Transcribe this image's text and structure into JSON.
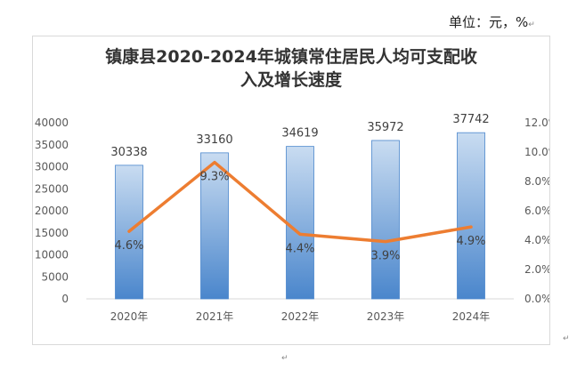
{
  "unit_text": "单位：元，%",
  "chart_data": {
    "type": "bar",
    "title_line1": "镇康县2020-2024年城镇常住居民人均可支配收",
    "title_line2": "入及增长速度",
    "categories": [
      "2020年",
      "2021年",
      "2022年",
      "2023年",
      "2024年"
    ],
    "series": [
      {
        "type": "bar",
        "values": [
          30338,
          33160,
          34619,
          35972,
          37742
        ]
      },
      {
        "type": "line",
        "axis": "right",
        "values": [
          4.6,
          9.3,
          4.4,
          3.9,
          4.9
        ],
        "labels": [
          "4.6%",
          "9.3%",
          "4.4%",
          "3.9%",
          "4.9%"
        ]
      }
    ],
    "y_left": {
      "min": 0,
      "max": 40000,
      "ticks": [
        "0",
        "5000",
        "10000",
        "15000",
        "20000",
        "25000",
        "30000",
        "35000",
        "40000"
      ]
    },
    "y_right": {
      "min": 0,
      "max": 12,
      "ticks": [
        "0.0%",
        "2.0%",
        "4.0%",
        "6.0%",
        "8.0%",
        "10.0%",
        "12.0%"
      ]
    },
    "colors": {
      "bar_top": "#c9dcf1",
      "bar_bottom": "#4a86cc",
      "bar_edge": "#4a86cc",
      "line": "#ed7d31"
    },
    "grid": false,
    "legend": "none"
  }
}
